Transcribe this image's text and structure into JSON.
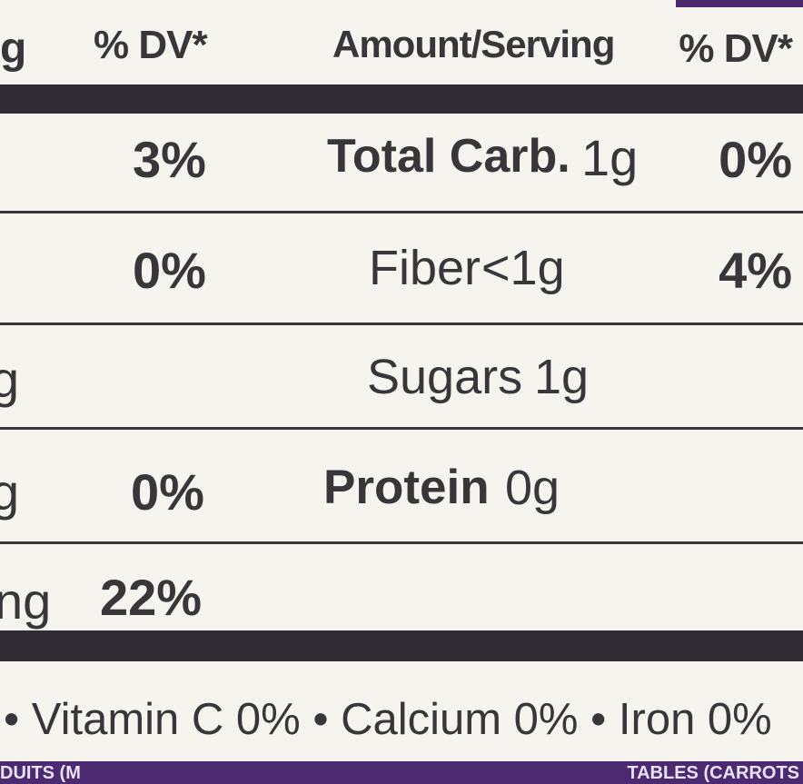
{
  "header": {
    "left_unit_fragment": "g",
    "dv_left": "% DV*",
    "amount_serving": "Amount/Serving",
    "dv_right": "% DV*"
  },
  "rows": [
    {
      "left_fragment": "",
      "left_dv": "3%",
      "nutrient": "Total Carb.",
      "amount": "1g",
      "bold": true,
      "right_dv": "0%"
    },
    {
      "left_fragment": "",
      "left_dv": "0%",
      "nutrient": "Fiber",
      "amount": "<1g",
      "bold": false,
      "right_dv": "4%"
    },
    {
      "left_fragment": "g",
      "left_dv": "",
      "nutrient": "Sugars",
      "amount": "1g",
      "bold": false,
      "right_dv": ""
    },
    {
      "left_fragment": "g",
      "left_dv": "0%",
      "nutrient": "Protein",
      "amount": "0g",
      "bold": true,
      "right_dv": ""
    },
    {
      "left_fragment": "ng",
      "left_dv": "22%",
      "nutrient": "",
      "amount": "",
      "bold": false,
      "right_dv": ""
    }
  ],
  "vitamins": "• Vitamin C 0% • Calcium 0% • Iron 0%",
  "bottom_strip": {
    "left": "DUITS (M",
    "right": "TABLES (CARROTS"
  },
  "colors": {
    "ink": "#3a3539",
    "paper": "#f6f4ee",
    "bar": "#2f2b32",
    "purple": "#4b2a72"
  }
}
